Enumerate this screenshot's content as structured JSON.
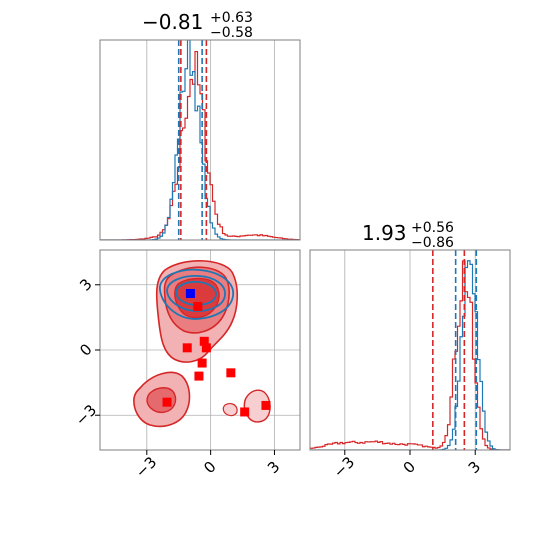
{
  "chart_data": {
    "type": "corner",
    "parameters": [
      "p1",
      "p2"
    ],
    "colors": {
      "red": "#d62728",
      "blue": "#1f77b4",
      "marker_red": "#ff0000",
      "marker_blue": "#0000ff",
      "grid": "#b0b0b0"
    },
    "titles": [
      {
        "center": "−0.81",
        "plus": "+0.63",
        "minus": "−0.58"
      },
      {
        "center": "1.93",
        "plus": "+0.56",
        "minus": "−0.86"
      }
    ],
    "axes": {
      "x1": {
        "range": [
          -5.2,
          4.2
        ],
        "ticks": [
          -3,
          0,
          3
        ],
        "tick_labels": [
          "−3",
          "0",
          "3"
        ]
      },
      "x2": {
        "range": [
          -4.6,
          4.6
        ],
        "ticks": [
          -3,
          0,
          3
        ],
        "tick_labels": [
          "−3",
          "0",
          "3"
        ]
      },
      "y2": {
        "range": [
          -4.6,
          4.6
        ],
        "ticks": [
          -3,
          0,
          3
        ],
        "tick_labels": [
          "−3",
          "0",
          "3"
        ]
      }
    },
    "hist1": {
      "blue_peak": -1.0,
      "blue_sigma": 0.48,
      "red_peak": -0.8,
      "red_sigma": 0.55,
      "blue_quantiles": [
        -1.5,
        -0.4
      ],
      "red_quantiles": [
        -1.4,
        -0.2
      ]
    },
    "hist2": {
      "blue_peak": 2.75,
      "blue_sigma": 0.35,
      "red_peak": 2.5,
      "red_sigma": 0.38,
      "blue_quantiles": [
        2.1,
        3.05
      ],
      "red_quantiles": [
        1.05,
        2.5
      ]
    },
    "scatter": {
      "blue_points": [
        [
          -0.95,
          2.6
        ]
      ],
      "red_points": [
        [
          -0.6,
          2.0
        ],
        [
          -1.1,
          0.1
        ],
        [
          -0.2,
          0.1
        ],
        [
          -0.3,
          0.4
        ],
        [
          -0.4,
          -0.6
        ],
        [
          -0.55,
          -1.2
        ],
        [
          0.95,
          -1.05
        ],
        [
          -2.05,
          -2.4
        ],
        [
          1.6,
          -2.85
        ],
        [
          2.6,
          -2.55
        ]
      ]
    }
  }
}
